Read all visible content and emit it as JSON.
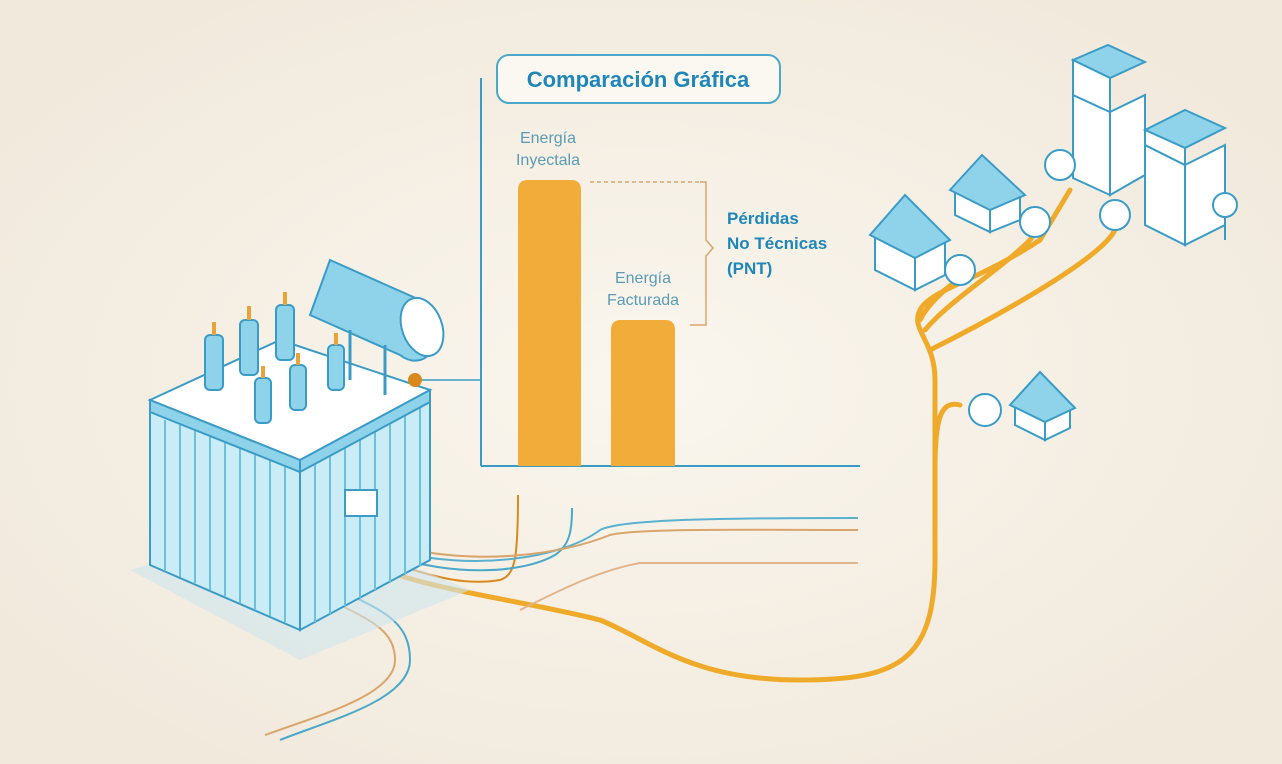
{
  "panel": {
    "title": "Comparación Gráfica",
    "bars": [
      {
        "label": [
          "Energía",
          "Inyectala"
        ]
      },
      {
        "label": [
          "Energía",
          "Facturada"
        ]
      }
    ]
  },
  "annotation": {
    "lines": [
      "Pérdidas",
      "No Técnicas",
      "(PNT)"
    ]
  }
}
